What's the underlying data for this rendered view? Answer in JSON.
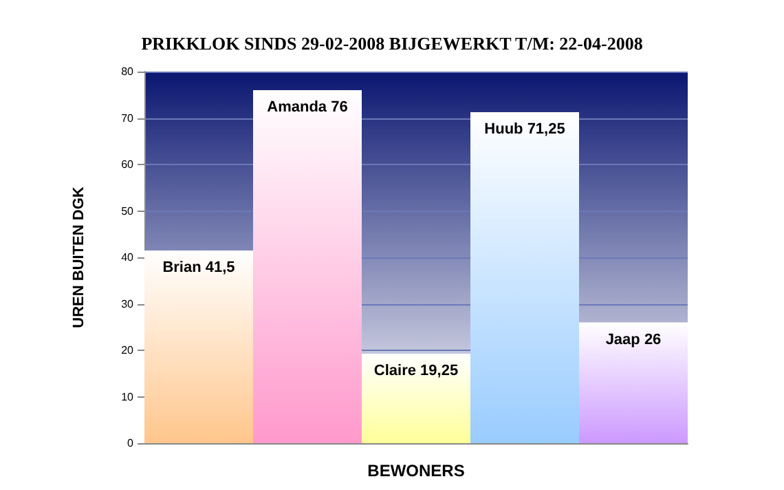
{
  "chart_data": {
    "type": "bar",
    "title": "PRIKKLOK SINDS 29-02-2008 BIJGEWERKT T/M: 22-04-2008",
    "xlabel": "BEWONERS",
    "ylabel": "UREN BUITEN DGK",
    "categories": [
      null,
      null,
      null,
      null,
      null
    ],
    "values": [
      41.5,
      76,
      19.25,
      71.25,
      26
    ],
    "colors": [
      "#ffc68c",
      "#ff99cc",
      "#ffff99",
      "#99ccff",
      "#cc99ff"
    ],
    "value_labels": [
      "Brian 41,5",
      "Amanda 76",
      "Claire 19,25",
      "Huub 71,25",
      "Jaap 26"
    ],
    "ylim": [
      0,
      80
    ],
    "yticks": [
      0,
      10,
      20,
      30,
      40,
      50,
      60,
      70,
      80
    ],
    "grid": "y"
  }
}
